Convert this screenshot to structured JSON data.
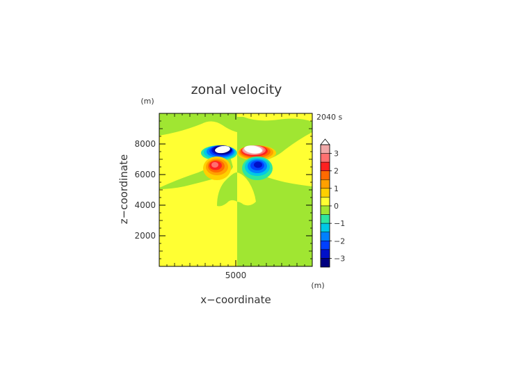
{
  "chart_data": {
    "type": "heatmap",
    "title": "zonal velocity",
    "xlabel": "x−coordinate",
    "ylabel": "z−coordinate",
    "x_unit": "(m)",
    "y_unit": "(m)",
    "time_label": "2040 s",
    "xlim": [
      0,
      10000
    ],
    "ylim": [
      0,
      10000
    ],
    "x_ticks": [
      {
        "value": 5000,
        "label": "5000"
      }
    ],
    "y_ticks": [
      {
        "value": 2000,
        "label": "2000"
      },
      {
        "value": 4000,
        "label": "4000"
      },
      {
        "value": 6000,
        "label": "6000"
      },
      {
        "value": 8000,
        "label": "8000"
      }
    ],
    "colorbar": {
      "min": -3.5,
      "max": 3.5,
      "ticks": [
        {
          "value": 3,
          "label": "3"
        },
        {
          "value": 2,
          "label": "2"
        },
        {
          "value": 1,
          "label": "1"
        },
        {
          "value": 0,
          "label": "0"
        },
        {
          "value": -1,
          "label": "−1"
        },
        {
          "value": -2,
          "label": "−2"
        },
        {
          "value": -3,
          "label": "−3"
        }
      ],
      "levels": [
        {
          "from": 3.0,
          "to": 3.5,
          "color": "#f0a8a8"
        },
        {
          "from": 2.5,
          "to": 3.0,
          "color": "#ff7070"
        },
        {
          "from": 2.0,
          "to": 2.5,
          "color": "#ff2020"
        },
        {
          "from": 1.5,
          "to": 2.0,
          "color": "#ff6a00"
        },
        {
          "from": 1.0,
          "to": 1.5,
          "color": "#ffa000"
        },
        {
          "from": 0.5,
          "to": 1.0,
          "color": "#ffd000"
        },
        {
          "from": 0.0,
          "to": 0.5,
          "color": "#ffff33"
        },
        {
          "from": -0.5,
          "to": 0.0,
          "color": "#a0e632"
        },
        {
          "from": -1.0,
          "to": -0.5,
          "color": "#2ee6a0"
        },
        {
          "from": -1.5,
          "to": -1.0,
          "color": "#00c8e6"
        },
        {
          "from": -2.0,
          "to": -1.5,
          "color": "#0080ff"
        },
        {
          "from": -2.5,
          "to": -2.0,
          "color": "#0040ff"
        },
        {
          "from": -3.0,
          "to": -2.5,
          "color": "#0010c8"
        },
        {
          "from": -3.5,
          "to": -3.0,
          "color": "#000080"
        }
      ],
      "overflow_color": "#ffffff"
    },
    "features": [
      {
        "name": "upper-left jet",
        "x": 3900,
        "z": 7500,
        "peak": -3.6
      },
      {
        "name": "upper-right jet",
        "x": 6100,
        "z": 7500,
        "peak": 3.6
      },
      {
        "name": "lower-left lobe",
        "x": 3600,
        "z": 6700,
        "peak": 2.6
      },
      {
        "name": "lower-right lobe",
        "x": 6400,
        "z": 6700,
        "peak": -2.8
      }
    ]
  },
  "colors": {
    "positive_background": "#ffff33",
    "negative_background": "#a0e632"
  }
}
